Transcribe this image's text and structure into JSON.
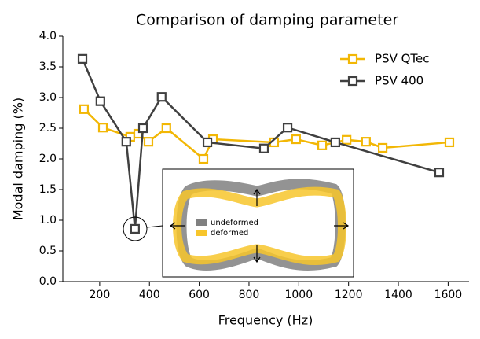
{
  "chart_data": {
    "type": "line",
    "title": "Comparison of damping parameter",
    "x_label": "Frequency (Hz)",
    "y_label": "Modal damping (%)",
    "xlim": [
      52,
      1684
    ],
    "ylim": [
      0,
      4
    ],
    "xticks": [
      200,
      400,
      600,
      800,
      1000,
      1200,
      1400,
      1600
    ],
    "yticks": [
      {
        "value": 0,
        "label": "0.0"
      },
      0.5,
      {
        "value": 1,
        "label": "1.0"
      },
      1.5,
      {
        "value": 2,
        "label": "2.0"
      },
      2.5,
      {
        "value": 3,
        "label": "3.0"
      },
      3.5,
      {
        "value": 4,
        "label": "4.0"
      }
    ],
    "legend": "upper right",
    "series": [
      {
        "name": "PSV QTec",
        "color": "#f2b705",
        "x": [
          137,
          213,
          323,
          355,
          396,
          468,
          617,
          655,
          901,
          989,
          1094,
          1192,
          1270,
          1337,
          1605
        ],
        "values": [
          2.81,
          2.51,
          2.36,
          2.41,
          2.28,
          2.5,
          2.0,
          2.32,
          2.27,
          2.32,
          2.22,
          2.31,
          2.28,
          2.18,
          2.27
        ]
      },
      {
        "name": "PSV 400",
        "color": "#404040",
        "x": [
          131,
          203,
          307,
          342,
          374,
          449,
          633,
          860,
          955,
          1147,
          1564
        ],
        "values": [
          3.63,
          2.94,
          2.28,
          0.86,
          2.5,
          3.01,
          2.27,
          2.17,
          2.51,
          2.27,
          1.78
        ]
      }
    ],
    "inset_legend": [
      "undeformed",
      "deformed"
    ]
  }
}
